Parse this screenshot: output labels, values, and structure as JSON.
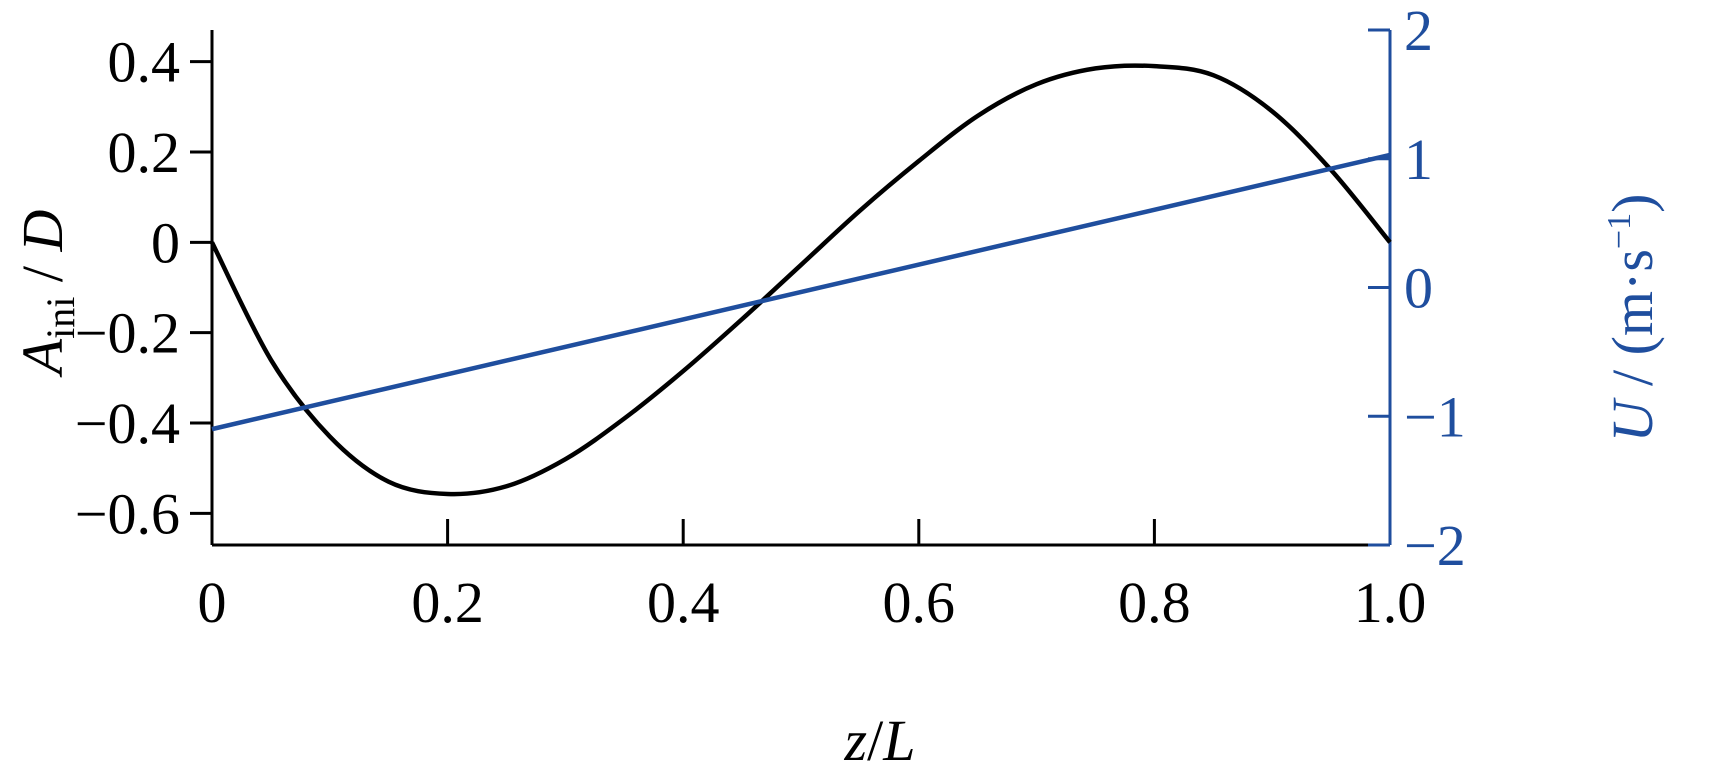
{
  "chart_data": {
    "type": "line",
    "x": {
      "label": "z/L",
      "label_parts": [
        "z",
        "/",
        "L"
      ],
      "lim": [
        0,
        1.0
      ],
      "ticks": [
        0,
        0.2,
        0.4,
        0.6,
        0.8,
        1.0
      ],
      "tick_labels": [
        "0",
        "0.2",
        "0.4",
        "0.6",
        "0.8",
        "1.0"
      ]
    },
    "y_left": {
      "label": "A_ini / D",
      "label_parts": [
        "A",
        "ini",
        " / ",
        "D"
      ],
      "lim": [
        -0.67,
        0.47
      ],
      "ticks": [
        -0.6,
        -0.4,
        -0.2,
        0,
        0.2,
        0.4
      ],
      "tick_labels": [
        "−0.6",
        "−0.4",
        "−0.2",
        "0",
        "0.2",
        "0.4"
      ],
      "color": "#000000"
    },
    "y_right": {
      "label": "U / (m·s⁻¹)",
      "label_parts": [
        "U",
        " / (m·s",
        "−1",
        ")"
      ],
      "lim": [
        -2,
        2
      ],
      "ticks": [
        -2,
        -1,
        0,
        1,
        2
      ],
      "tick_labels": [
        "−2",
        "−1",
        "0",
        "1",
        "2"
      ],
      "color": "#1f4e9e"
    },
    "series": [
      {
        "axis": "left",
        "color": "#000000",
        "x": [
          0,
          0.05,
          0.1,
          0.15,
          0.2,
          0.25,
          0.3,
          0.35,
          0.4,
          0.45,
          0.5,
          0.55,
          0.6,
          0.65,
          0.7,
          0.75,
          0.8,
          0.85,
          0.9,
          0.95,
          1.0
        ],
        "values": [
          0,
          -0.26,
          -0.43,
          -0.53,
          -0.557,
          -0.54,
          -0.48,
          -0.39,
          -0.285,
          -0.17,
          -0.05,
          0.07,
          0.18,
          0.28,
          0.35,
          0.385,
          0.39,
          0.37,
          0.29,
          0.16,
          0
        ]
      },
      {
        "axis": "right",
        "color": "#1f4e9e",
        "x": [
          0,
          1.0
        ],
        "values": [
          -1.1,
          1.03
        ]
      }
    ],
    "grid": false,
    "legend": "none"
  }
}
